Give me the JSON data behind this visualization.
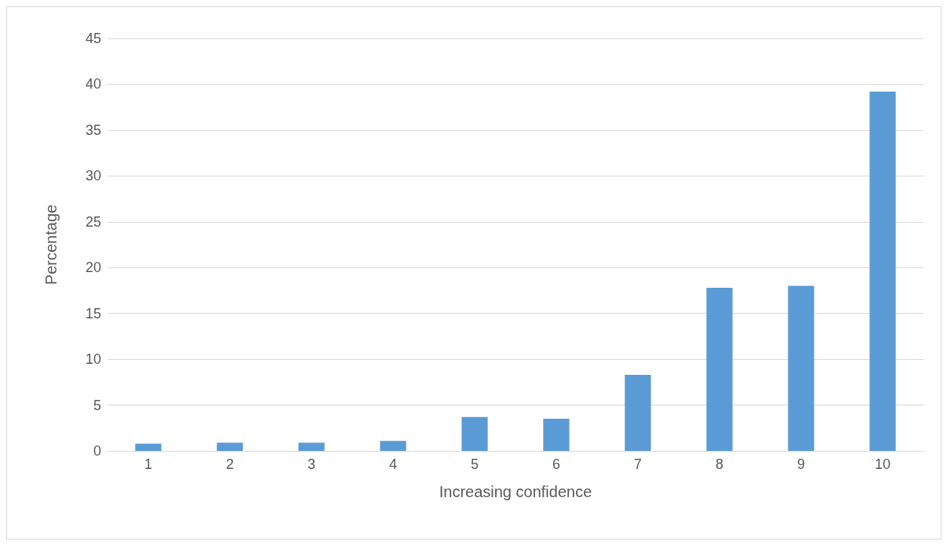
{
  "chart_data": {
    "type": "bar",
    "xlabel": "Increasing confidence",
    "ylabel": "Percentage",
    "categories": [
      "1",
      "2",
      "3",
      "4",
      "5",
      "6",
      "7",
      "8",
      "9",
      "10"
    ],
    "values": [
      0.8,
      0.9,
      0.9,
      1.1,
      3.7,
      3.5,
      8.3,
      17.8,
      18.0,
      39.2
    ],
    "color": "#5b9bd5",
    "ylim": [
      0,
      45
    ],
    "yticks": [
      0,
      5,
      10,
      15,
      20,
      25,
      30,
      35,
      40,
      45
    ],
    "grid": "y"
  }
}
